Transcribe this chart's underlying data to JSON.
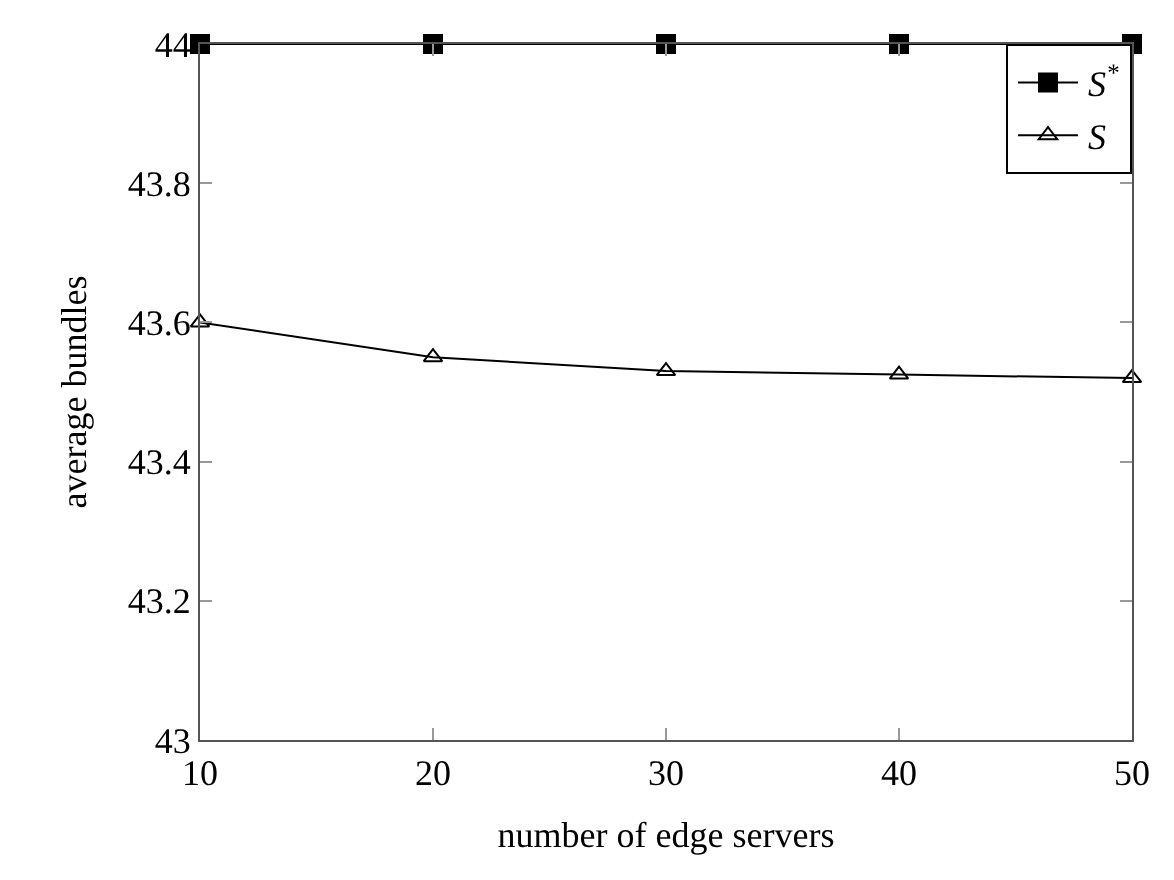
{
  "chart_data": {
    "type": "line",
    "xlabel": "number of edge servers",
    "ylabel": "average bundles",
    "x": [
      10,
      20,
      30,
      40,
      50
    ],
    "series": [
      {
        "name": "S$^{*}$",
        "color": "#000000",
        "marker": "square",
        "values": [
          44,
          44,
          44,
          44,
          44
        ]
      },
      {
        "name": "S",
        "color": "#000000",
        "marker": "triangle",
        "values": [
          43.6,
          43.55,
          43.53,
          43.525,
          43.52
        ]
      }
    ],
    "xlim": [
      10,
      50
    ],
    "xticks": [
      10,
      20,
      30,
      40,
      50
    ],
    "ylim": [
      43,
      44
    ],
    "yticks": [
      43,
      43.2,
      43.4,
      43.6,
      43.8,
      44
    ],
    "legend": "top right",
    "line_style": "solid"
  }
}
